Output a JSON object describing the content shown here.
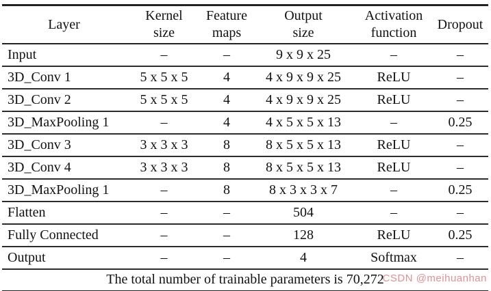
{
  "table": {
    "headers": [
      {
        "lines": [
          "Layer"
        ]
      },
      {
        "lines": [
          "Kernel",
          "size"
        ]
      },
      {
        "lines": [
          "Feature",
          "maps"
        ]
      },
      {
        "lines": [
          "Output",
          "size"
        ]
      },
      {
        "lines": [
          "Activation",
          "function"
        ]
      },
      {
        "lines": [
          "Dropout"
        ]
      }
    ],
    "rows": [
      [
        "Input",
        "–",
        "–",
        "9 x 9 x 25",
        "–",
        "–"
      ],
      [
        "3D_Conv 1",
        "5 x 5 x 5",
        "4",
        "4 x 9 x 9 x 25",
        "ReLU",
        "–"
      ],
      [
        "3D_Conv 2",
        "5 x 5 x 5",
        "4",
        "4 x 9 x 9 x 25",
        "ReLU",
        "–"
      ],
      [
        "3D_MaxPooling 1",
        "–",
        "4",
        "4 x 5 x 5 x 13",
        "–",
        "0.25"
      ],
      [
        "3D_Conv 3",
        "3 x 3 x 3",
        "8",
        "8 x 5 x 5 x 13",
        "ReLU",
        "–"
      ],
      [
        "3D_Conv 4",
        "3 x 3 x 3",
        "8",
        "8 x 5 x 5 x 13",
        "ReLU",
        "–"
      ],
      [
        "3D_MaxPooling 1",
        "–",
        "8",
        "8 x 3 x 3 x 7",
        "–",
        "0.25"
      ],
      [
        "Flatten",
        "–",
        "–",
        "504",
        "–",
        "–"
      ],
      [
        "Fully Connected",
        "–",
        "–",
        "128",
        "ReLU",
        "0.25"
      ],
      [
        "Output",
        "–",
        "–",
        "4",
        "Softmax",
        "–"
      ]
    ],
    "footer": "The total number of trainable parameters is 70,272"
  },
  "watermark": {
    "text": "CSDN @meihuanhan",
    "color": "#df8b91"
  }
}
